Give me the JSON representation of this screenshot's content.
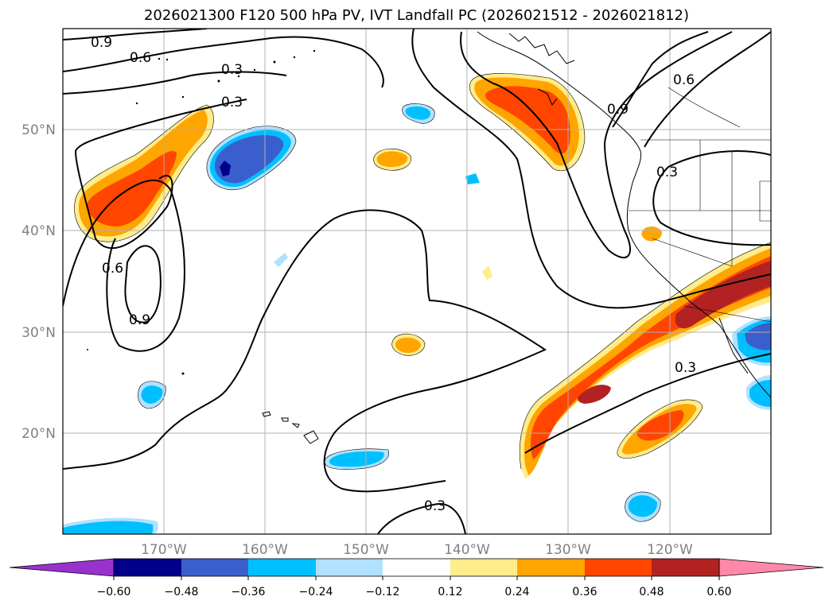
{
  "title": "2026021300 F120 500 hPa PV, IVT Landfall PC (2026021512 - 2026021812)",
  "map": {
    "lon_range": [
      -180,
      -110
    ],
    "lat_range": [
      10,
      60
    ],
    "lon_ticks": [
      "170°W",
      "160°W",
      "150°W",
      "140°W",
      "130°W",
      "120°W"
    ],
    "lat_ticks": [
      "20°N",
      "30°N",
      "40°N",
      "50°N"
    ],
    "grid": true,
    "contour_labels": [
      "0.9",
      "0.6",
      "0.3",
      "0.3",
      "0.9",
      "0.6",
      "0.3",
      "0.6",
      "0.9",
      "0.3",
      "0.3"
    ]
  },
  "colorbar": {
    "levels": [
      "−0.60",
      "−0.48",
      "−0.36",
      "−0.24",
      "−0.12",
      "0.12",
      "0.24",
      "0.36",
      "0.48",
      "0.60"
    ],
    "colors": [
      "#9932cc",
      "#00008b",
      "#3a5fcd",
      "#00bfff",
      "#b0e2ff",
      "#ffffff",
      "#ffec8b",
      "#ffa500",
      "#ff4500",
      "#b22222",
      "#ff88aa"
    ],
    "extend": "both"
  },
  "colors": {
    "pos1": "#ffec8b",
    "pos2": "#ffa500",
    "pos3": "#ff4500",
    "pos4": "#b22222",
    "neg1": "#b0e2ff",
    "neg2": "#00bfff",
    "neg3": "#3a5fcd",
    "neg4": "#00008b",
    "grid": "#b0b0b0",
    "tick": "#808080"
  }
}
